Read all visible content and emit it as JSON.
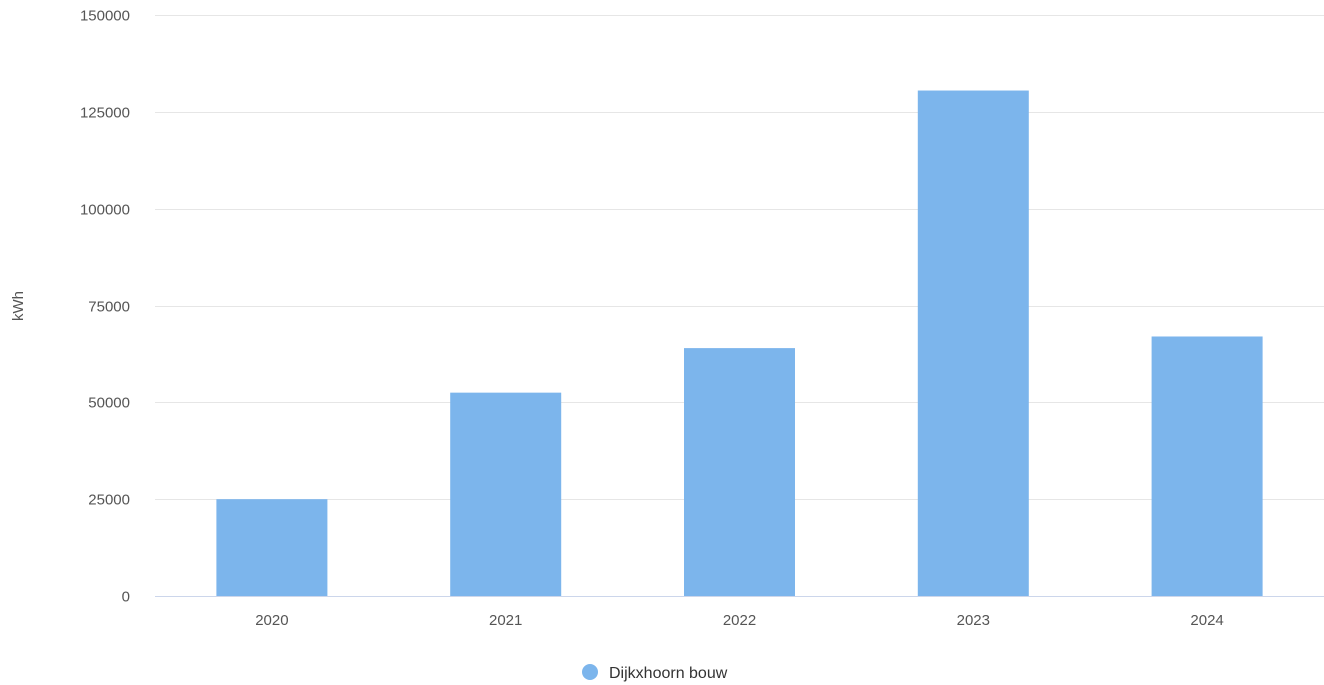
{
  "chart_data": {
    "type": "bar",
    "categories": [
      "2020",
      "2021",
      "2022",
      "2023",
      "2024"
    ],
    "series": [
      {
        "name": "Dijkxhoorn bouw",
        "values": [
          25000,
          52500,
          64000,
          130500,
          67000
        ],
        "color": "#7cb5ec"
      }
    ],
    "ylabel": "kWh",
    "ylim": [
      0,
      150000
    ],
    "yticks": [
      0,
      25000,
      50000,
      75000,
      100000,
      125000,
      150000
    ],
    "grid": true,
    "legend_position": "bottom-center"
  }
}
